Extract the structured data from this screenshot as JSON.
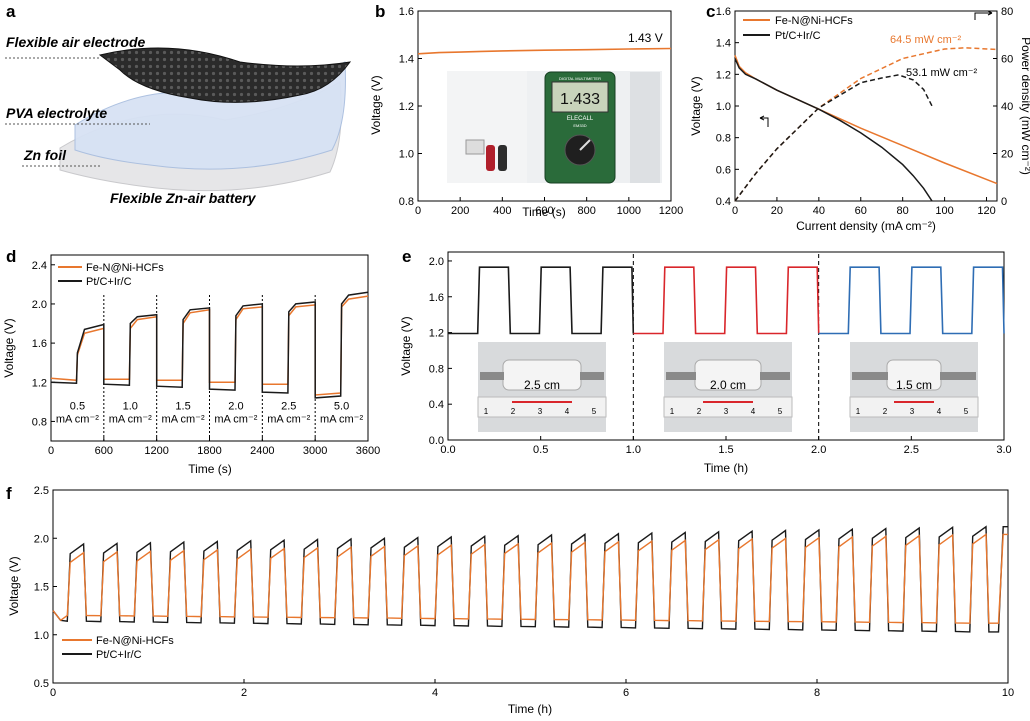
{
  "colors": {
    "series1": "#E8772E",
    "series2": "#1a1a1a",
    "red": "#D9262B",
    "blue": "#2E6DB4"
  },
  "panel_letters": {
    "a": "a",
    "b": "b",
    "c": "c",
    "d": "d",
    "e": "e",
    "f": "f"
  },
  "schematic": {
    "layer1": "Flexible air electrode",
    "layer2": "PVA electrolyte",
    "layer3": "Zn foil",
    "caption": "Flexible Zn-air battery"
  },
  "chart_data": [
    {
      "id": "b",
      "type": "line",
      "xlabel": "Time (s)",
      "ylabel": "Voltage (V)",
      "xlim": [
        0,
        1200
      ],
      "ylim": [
        0.8,
        1.6
      ],
      "xticks": [
        0,
        200,
        400,
        600,
        800,
        1000,
        1200
      ],
      "yticks": [
        0.8,
        1.0,
        1.2,
        1.4,
        1.6
      ],
      "series": [
        {
          "x": [
            0,
            100,
            200,
            300,
            400,
            600,
            800,
            1000,
            1200
          ],
          "y": [
            1.42,
            1.425,
            1.427,
            1.43,
            1.432,
            1.435,
            1.437,
            1.44,
            1.442
          ]
        }
      ],
      "annotation": "1.43 V",
      "photo": {
        "device": "ELECALL",
        "model": "EM33D",
        "reading": "1.433",
        "label": "DIGITAL MULTIMETER"
      }
    },
    {
      "id": "c",
      "type": "line",
      "xlabel": "Current density (mA cm⁻²)",
      "ylabel": "Voltage (V)",
      "ylabel2": "Power density (mW cm⁻²)",
      "xlim": [
        0,
        125
      ],
      "ylim": [
        0.4,
        1.6
      ],
      "ylim2": [
        0,
        80
      ],
      "xticks": [
        0,
        20,
        40,
        60,
        80,
        100,
        120
      ],
      "yticks": [
        0.4,
        0.6,
        0.8,
        1.0,
        1.2,
        1.4,
        1.6
      ],
      "yticks2": [
        0,
        20,
        40,
        60,
        80
      ],
      "series": [
        {
          "name": "Fe-N@Ni-HCFs",
          "axis": "left",
          "style": "solid",
          "x": [
            0,
            2,
            5,
            10,
            20,
            30,
            40,
            60,
            80,
            100,
            125
          ],
          "y": [
            1.32,
            1.25,
            1.21,
            1.17,
            1.1,
            1.04,
            0.98,
            0.86,
            0.75,
            0.64,
            0.51
          ]
        },
        {
          "name": "Pt/C+Ir/C",
          "axis": "left",
          "style": "solid",
          "x": [
            0,
            2,
            5,
            10,
            20,
            30,
            40,
            50,
            60,
            70,
            80,
            85,
            90,
            94
          ],
          "y": [
            1.3,
            1.24,
            1.2,
            1.17,
            1.1,
            1.04,
            0.98,
            0.91,
            0.83,
            0.74,
            0.63,
            0.56,
            0.48,
            0.4
          ]
        },
        {
          "name": "Fe-N@Ni-HCFs",
          "axis": "right",
          "style": "dashed",
          "x": [
            0,
            10,
            20,
            40,
            60,
            80,
            100,
            110,
            125
          ],
          "y": [
            0,
            11.7,
            22,
            39.2,
            51.6,
            60,
            64,
            64.5,
            63.8
          ]
        },
        {
          "name": "Pt/C+Ir/C",
          "axis": "right",
          "style": "dashed",
          "x": [
            0,
            10,
            20,
            40,
            60,
            70,
            78,
            85,
            90,
            94
          ],
          "y": [
            0,
            11.7,
            22,
            39.2,
            49.8,
            51.8,
            53.1,
            51,
            47,
            40
          ]
        }
      ],
      "legend": [
        "Fe-N@Ni-HCFs",
        "Pt/C+Ir/C"
      ],
      "annotations": [
        "64.5 mW cm⁻²",
        "53.1 mW cm⁻²"
      ]
    },
    {
      "id": "d",
      "type": "line",
      "xlabel": "Time (s)",
      "ylabel": "Voltage (V)",
      "xlim": [
        0,
        3600
      ],
      "ylim": [
        0.6,
        2.5
      ],
      "xticks": [
        0,
        600,
        1200,
        1800,
        2400,
        3000,
        3600
      ],
      "yticks": [
        0.8,
        1.2,
        1.6,
        2.0,
        2.4
      ],
      "current_labels": [
        [
          "0.5",
          "mA cm⁻²"
        ],
        [
          "1.0",
          "mA cm⁻²"
        ],
        [
          "1.5",
          "mA cm⁻²"
        ],
        [
          "2.0",
          "mA cm⁻²"
        ],
        [
          "2.5",
          "mA cm⁻²"
        ],
        [
          "5.0",
          "mA cm⁻²"
        ]
      ],
      "segments": [
        {
          "disc": [
            1.24,
            1.22
          ],
          "charge": [
            1.48,
            1.7,
            1.75
          ],
          "disc_k": [
            1.2,
            1.19
          ],
          "charge_k": [
            1.5,
            1.74,
            1.79
          ]
        },
        {
          "disc": [
            1.23,
            1.23
          ],
          "charge": [
            1.75,
            1.84,
            1.87
          ],
          "disc_k": [
            1.18,
            1.17
          ],
          "charge_k": [
            1.8,
            1.87,
            1.89
          ]
        },
        {
          "disc": [
            1.22,
            1.22
          ],
          "charge": [
            1.8,
            1.91,
            1.94
          ],
          "disc_k": [
            1.16,
            1.15
          ],
          "charge_k": [
            1.84,
            1.94,
            1.96
          ]
        },
        {
          "disc": [
            1.2,
            1.2
          ],
          "charge": [
            1.84,
            1.95,
            1.97
          ],
          "disc_k": [
            1.13,
            1.12
          ],
          "charge_k": [
            1.88,
            1.98,
            2.0
          ]
        },
        {
          "disc": [
            1.18,
            1.18
          ],
          "charge": [
            1.88,
            1.97,
            1.99
          ],
          "disc_k": [
            1.1,
            1.09
          ],
          "charge_k": [
            1.92,
            2.0,
            2.02
          ]
        },
        {
          "disc": [
            1.07,
            1.09
          ],
          "charge": [
            1.97,
            2.05,
            2.08
          ],
          "disc_k": [
            1.04,
            1.06
          ],
          "charge_k": [
            2.0,
            2.09,
            2.12
          ]
        }
      ],
      "legend": [
        "Fe-N@Ni-HCFs",
        "Pt/C+Ir/C"
      ]
    },
    {
      "id": "e",
      "type": "line",
      "xlabel": "Time (h)",
      "ylabel": "Voltage (V)",
      "xlim": [
        0,
        3.0
      ],
      "ylim": [
        0,
        2.1
      ],
      "xticks": [
        0.0,
        0.5,
        1.0,
        1.5,
        2.0,
        2.5,
        3.0
      ],
      "yticks": [
        0.0,
        0.4,
        0.8,
        1.2,
        1.6,
        2.0
      ],
      "discharge_v": 1.19,
      "charge_v": 1.93,
      "segment_colors": [
        "#1a1a1a",
        "#D9262B",
        "#2E6DB4"
      ],
      "bend_labels": [
        "2.5 cm",
        "2.0 cm",
        "1.5 cm"
      ],
      "ruler_ticks": [
        "1",
        "2",
        "3",
        "4",
        "5"
      ]
    },
    {
      "id": "f",
      "type": "line",
      "xlabel": "Time (h)",
      "ylabel": "Voltage (V)",
      "xlim": [
        0,
        10
      ],
      "ylim": [
        0.5,
        2.5
      ],
      "xticks": [
        0,
        2,
        4,
        6,
        8,
        10
      ],
      "yticks": [
        0.5,
        1.0,
        1.5,
        2.0,
        2.5
      ],
      "cycles": 28,
      "period_h": 0.35,
      "orange": {
        "charge_start": 1.85,
        "charge_end": 2.04,
        "disc_start": 1.2,
        "disc_end": 1.12
      },
      "black": {
        "charge_start": 1.94,
        "charge_end": 2.12,
        "disc_start": 1.14,
        "disc_end": 1.03
      },
      "legend": [
        "Fe-N@Ni-HCFs",
        "Pt/C+Ir/C"
      ]
    }
  ]
}
